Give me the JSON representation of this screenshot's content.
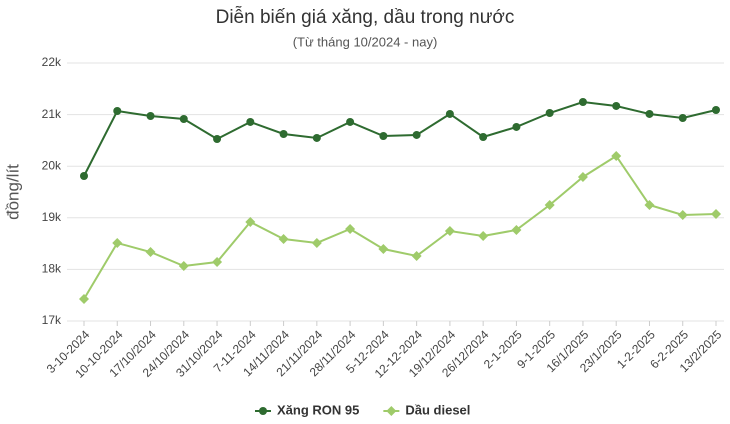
{
  "chart_data": {
    "type": "line",
    "title": "Diễn biến giá xăng, dầu trong nước",
    "subtitle": "(Từ tháng 10/2024 - nay)",
    "y_label": "đồng/lít",
    "categories": [
      "3-10-2024",
      "10-10-2024",
      "17/10/2024",
      "24/10/2024",
      "31/10/2024",
      "7-11-2024",
      "14/11/2024",
      "21/11/2024",
      "28/11/2024",
      "5-12-2024",
      "12-12-2024",
      "19/12/2024",
      "26/12/2024",
      "2-1-2025",
      "9-1-2025",
      "16/1/2025",
      "23/1/2025",
      "1-2-2025",
      "6-2-2025",
      "13/2/2025"
    ],
    "series": [
      {
        "name": "Xăng RON 95",
        "color": "#2e6b30",
        "values": [
          19810,
          21070,
          20973,
          20915,
          20527,
          20857,
          20624,
          20547,
          20857,
          20585,
          20605,
          21012,
          20566,
          20760,
          21031,
          21244,
          21167,
          21012,
          20934,
          21089
        ]
      },
      {
        "name": "Dầu diesel",
        "color": "#9fcb6a",
        "values": [
          17426,
          18512,
          18337,
          18066,
          18143,
          18919,
          18589,
          18512,
          18783,
          18395,
          18260,
          18744,
          18647,
          18764,
          19248,
          19791,
          20198,
          19248,
          19054,
          19074
        ]
      }
    ],
    "ylim": [
      17000,
      22000
    ],
    "yticks": [
      {
        "value": 17000,
        "label": "17k"
      },
      {
        "value": 18000,
        "label": "18k"
      },
      {
        "value": 19000,
        "label": "19k"
      },
      {
        "value": 20000,
        "label": "20k"
      },
      {
        "value": 21000,
        "label": "21k"
      },
      {
        "value": 22000,
        "label": "22k"
      }
    ],
    "grid": true,
    "legend": "bottom"
  }
}
